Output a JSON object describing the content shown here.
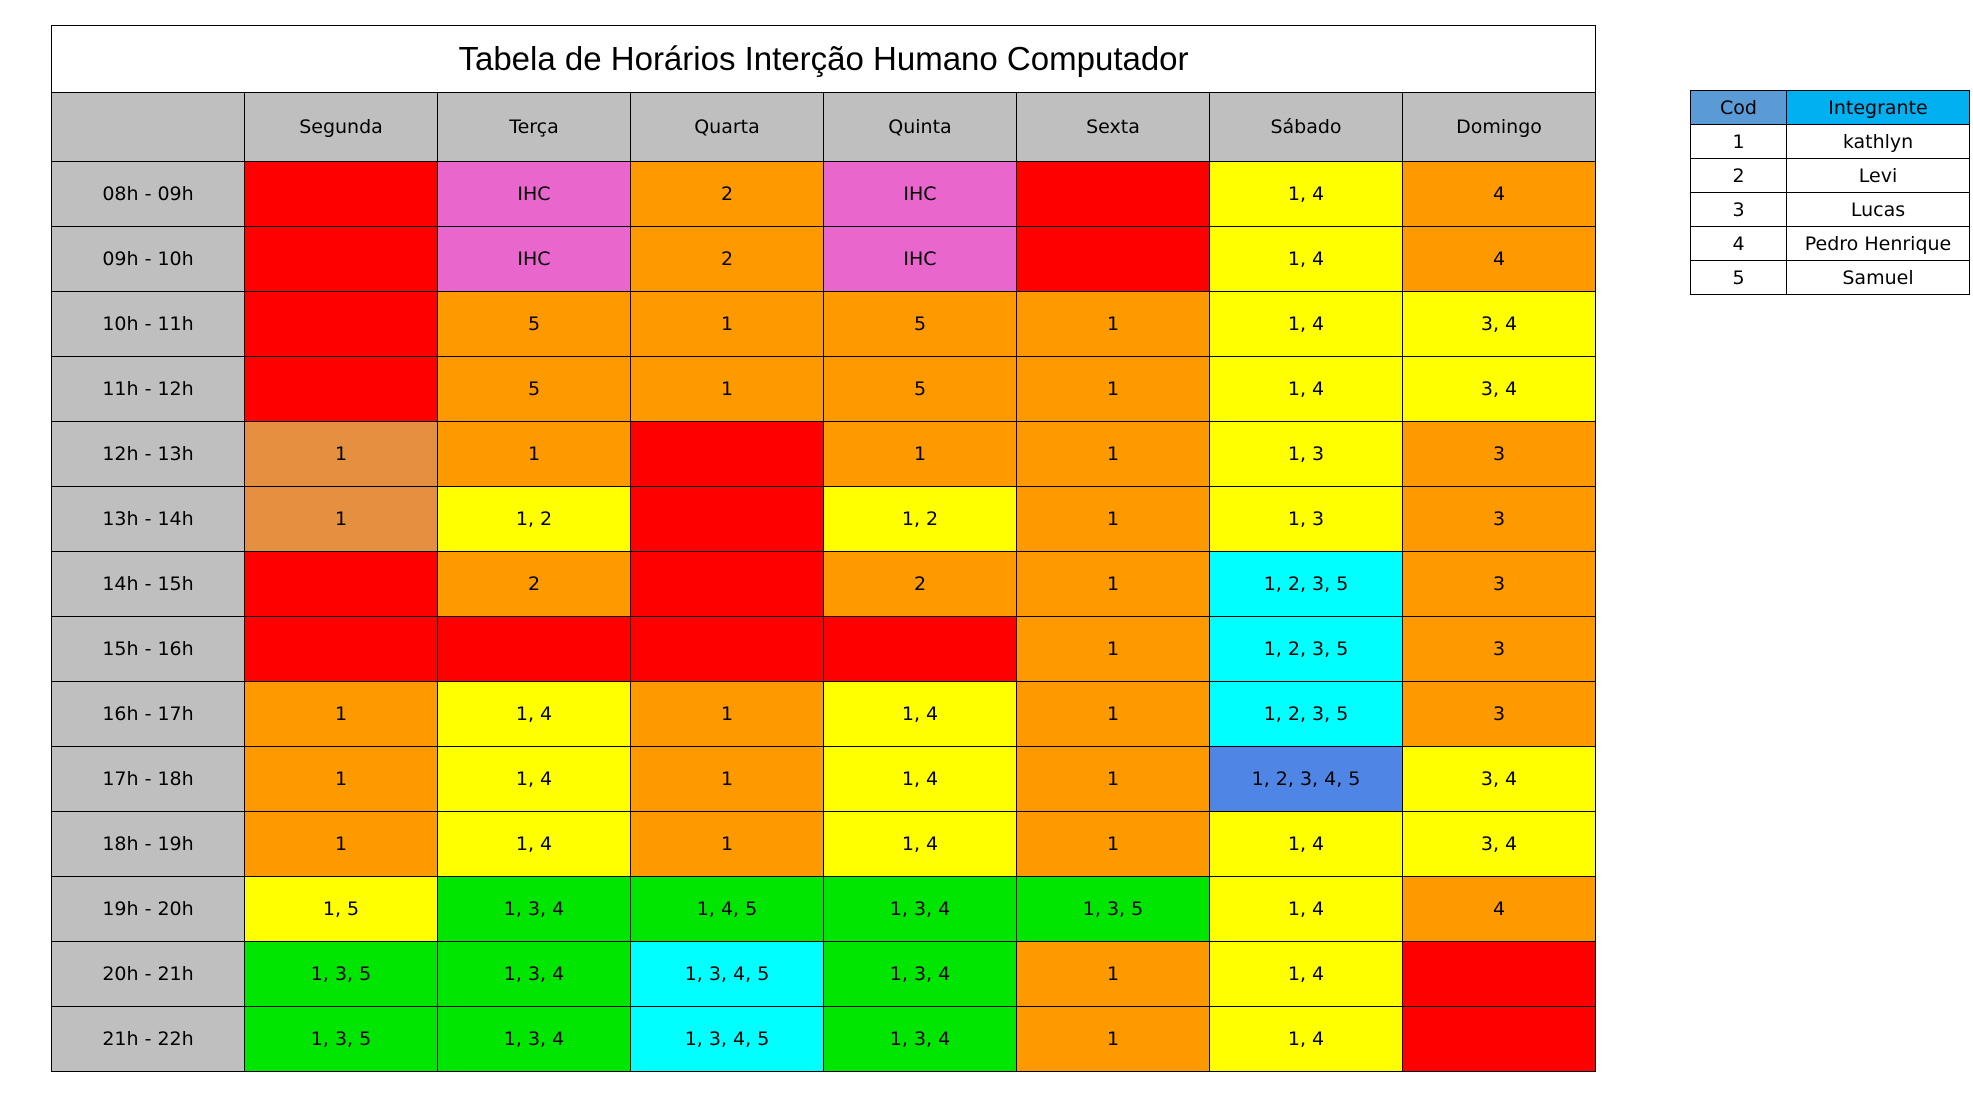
{
  "title": "Tabela de Horários Interção Humano Computador",
  "days": [
    "Segunda",
    "Terça",
    "Quarta",
    "Quinta",
    "Sexta",
    "Sábado",
    "Domingo"
  ],
  "colors": {
    "red": "#ff0000",
    "orange": "#ff9900",
    "light_orange": "#e59040",
    "yellow": "#ffff00",
    "pink": "#e966cc",
    "cyan": "#00ffff",
    "blue": "#4f86e6",
    "green": "#00e600",
    "gray": "#bfbfbf"
  },
  "rows": [
    {
      "slot": "08h - 09h",
      "cells": [
        {
          "t": "",
          "c": "red"
        },
        {
          "t": "IHC",
          "c": "pink"
        },
        {
          "t": "2",
          "c": "orange"
        },
        {
          "t": "IHC",
          "c": "pink"
        },
        {
          "t": "",
          "c": "red"
        },
        {
          "t": "1, 4",
          "c": "yellow"
        },
        {
          "t": "4",
          "c": "orange"
        }
      ]
    },
    {
      "slot": "09h - 10h",
      "cells": [
        {
          "t": "",
          "c": "red"
        },
        {
          "t": "IHC",
          "c": "pink"
        },
        {
          "t": "2",
          "c": "orange"
        },
        {
          "t": "IHC",
          "c": "pink"
        },
        {
          "t": "",
          "c": "red"
        },
        {
          "t": "1, 4",
          "c": "yellow"
        },
        {
          "t": "4",
          "c": "orange"
        }
      ]
    },
    {
      "slot": "10h - 11h",
      "cells": [
        {
          "t": "",
          "c": "red"
        },
        {
          "t": "5",
          "c": "orange"
        },
        {
          "t": "1",
          "c": "orange"
        },
        {
          "t": "5",
          "c": "orange"
        },
        {
          "t": "1",
          "c": "orange"
        },
        {
          "t": "1, 4",
          "c": "yellow"
        },
        {
          "t": "3, 4",
          "c": "yellow"
        }
      ]
    },
    {
      "slot": "11h - 12h",
      "cells": [
        {
          "t": "",
          "c": "red"
        },
        {
          "t": "5",
          "c": "orange"
        },
        {
          "t": "1",
          "c": "orange"
        },
        {
          "t": "5",
          "c": "orange"
        },
        {
          "t": "1",
          "c": "orange"
        },
        {
          "t": "1, 4",
          "c": "yellow"
        },
        {
          "t": "3, 4",
          "c": "yellow"
        }
      ]
    },
    {
      "slot": "12h - 13h",
      "cells": [
        {
          "t": "1",
          "c": "light_orange"
        },
        {
          "t": "1",
          "c": "orange"
        },
        {
          "t": "",
          "c": "red"
        },
        {
          "t": "1",
          "c": "orange"
        },
        {
          "t": "1",
          "c": "orange"
        },
        {
          "t": "1, 3",
          "c": "yellow"
        },
        {
          "t": "3",
          "c": "orange"
        }
      ]
    },
    {
      "slot": "13h - 14h",
      "cells": [
        {
          "t": "1",
          "c": "light_orange"
        },
        {
          "t": "1, 2",
          "c": "yellow"
        },
        {
          "t": "",
          "c": "red"
        },
        {
          "t": "1, 2",
          "c": "yellow"
        },
        {
          "t": "1",
          "c": "orange"
        },
        {
          "t": "1, 3",
          "c": "yellow"
        },
        {
          "t": "3",
          "c": "orange"
        }
      ]
    },
    {
      "slot": "14h - 15h",
      "cells": [
        {
          "t": "",
          "c": "red"
        },
        {
          "t": "2",
          "c": "orange"
        },
        {
          "t": "",
          "c": "red"
        },
        {
          "t": "2",
          "c": "orange"
        },
        {
          "t": "1",
          "c": "orange"
        },
        {
          "t": "1, 2, 3, 5",
          "c": "cyan"
        },
        {
          "t": "3",
          "c": "orange"
        }
      ]
    },
    {
      "slot": "15h - 16h",
      "cells": [
        {
          "t": "",
          "c": "red"
        },
        {
          "t": "",
          "c": "red"
        },
        {
          "t": "",
          "c": "red"
        },
        {
          "t": "",
          "c": "red"
        },
        {
          "t": "1",
          "c": "orange"
        },
        {
          "t": "1, 2, 3, 5",
          "c": "cyan"
        },
        {
          "t": "3",
          "c": "orange"
        }
      ]
    },
    {
      "slot": "16h - 17h",
      "cells": [
        {
          "t": "1",
          "c": "orange"
        },
        {
          "t": "1, 4",
          "c": "yellow"
        },
        {
          "t": "1",
          "c": "orange"
        },
        {
          "t": "1, 4",
          "c": "yellow"
        },
        {
          "t": "1",
          "c": "orange"
        },
        {
          "t": "1, 2, 3, 5",
          "c": "cyan"
        },
        {
          "t": "3",
          "c": "orange"
        }
      ]
    },
    {
      "slot": "17h - 18h",
      "cells": [
        {
          "t": "1",
          "c": "orange"
        },
        {
          "t": "1, 4",
          "c": "yellow"
        },
        {
          "t": "1",
          "c": "orange"
        },
        {
          "t": "1, 4",
          "c": "yellow"
        },
        {
          "t": "1",
          "c": "orange"
        },
        {
          "t": "1, 2, 3, 4, 5",
          "c": "blue"
        },
        {
          "t": "3, 4",
          "c": "yellow"
        }
      ]
    },
    {
      "slot": "18h - 19h",
      "cells": [
        {
          "t": "1",
          "c": "orange"
        },
        {
          "t": "1, 4",
          "c": "yellow"
        },
        {
          "t": "1",
          "c": "orange"
        },
        {
          "t": "1, 4",
          "c": "yellow"
        },
        {
          "t": "1",
          "c": "orange"
        },
        {
          "t": "1, 4",
          "c": "yellow"
        },
        {
          "t": "3, 4",
          "c": "yellow"
        }
      ]
    },
    {
      "slot": "19h - 20h",
      "cells": [
        {
          "t": "1, 5",
          "c": "yellow"
        },
        {
          "t": "1, 3, 4",
          "c": "green"
        },
        {
          "t": "1, 4, 5",
          "c": "green"
        },
        {
          "t": "1, 3, 4",
          "c": "green"
        },
        {
          "t": "1, 3, 5",
          "c": "green"
        },
        {
          "t": "1, 4",
          "c": "yellow"
        },
        {
          "t": "4",
          "c": "orange"
        }
      ]
    },
    {
      "slot": "20h - 21h",
      "cells": [
        {
          "t": "1, 3, 5",
          "c": "green"
        },
        {
          "t": "1, 3, 4",
          "c": "green"
        },
        {
          "t": "1, 3, 4, 5",
          "c": "cyan"
        },
        {
          "t": "1, 3, 4",
          "c": "green"
        },
        {
          "t": "1",
          "c": "orange"
        },
        {
          "t": "1, 4",
          "c": "yellow"
        },
        {
          "t": "",
          "c": "red"
        }
      ]
    },
    {
      "slot": "21h - 22h",
      "cells": [
        {
          "t": "1, 3, 5",
          "c": "green"
        },
        {
          "t": "1, 3, 4",
          "c": "green"
        },
        {
          "t": "1, 3, 4, 5",
          "c": "cyan"
        },
        {
          "t": "1, 3, 4",
          "c": "green"
        },
        {
          "t": "1",
          "c": "orange"
        },
        {
          "t": "1, 4",
          "c": "yellow"
        },
        {
          "t": "",
          "c": "red"
        }
      ]
    }
  ],
  "legend": {
    "header": {
      "cod": "Cod",
      "integrante": "Integrante"
    },
    "header_colors": {
      "cod": "#5b9bd5",
      "integrante": "#00b0f0"
    },
    "members": [
      {
        "cod": "1",
        "name": "kathlyn"
      },
      {
        "cod": "2",
        "name": "Levi"
      },
      {
        "cod": "3",
        "name": "Lucas"
      },
      {
        "cod": "4",
        "name": "Pedro Henrique"
      },
      {
        "cod": "5",
        "name": "Samuel"
      }
    ]
  }
}
